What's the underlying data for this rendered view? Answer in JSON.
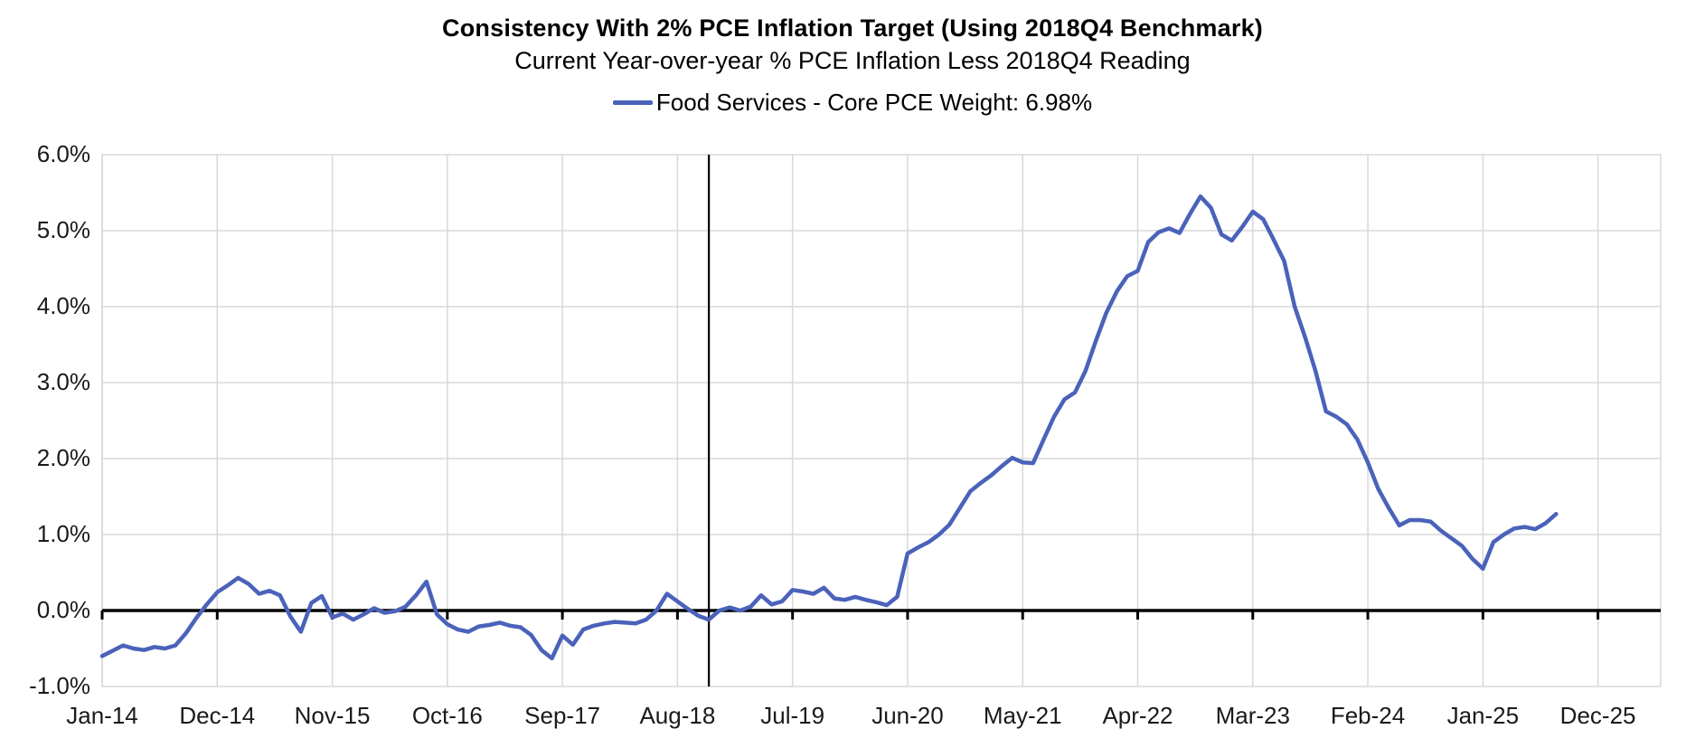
{
  "header": {
    "title": "Consistency With 2% PCE Inflation Target (Using 2018Q4 Benchmark)",
    "subtitle": "Current Year-over-year % PCE Inflation Less 2018Q4 Reading",
    "legend_label": "Food Services - Core PCE Weight: 6.98%"
  },
  "colors": {
    "series": "#4A62BA",
    "gridline": "#D8D8D8",
    "axis": "#000000",
    "text": "#1A1A1A"
  },
  "chart_data": {
    "type": "line",
    "title": "Consistency With 2% PCE Inflation Target (Using 2018Q4 Benchmark)",
    "subtitle": "Current Year-over-year % PCE Inflation Less 2018Q4 Reading",
    "legend_position": "top",
    "grid": true,
    "ylim": [
      -1.0,
      6.0
    ],
    "y_tick_labels": [
      "6.0%",
      "5.0%",
      "4.0%",
      "3.0%",
      "2.0%",
      "1.0%",
      "0.0%",
      "-1.0%"
    ],
    "y_tick_values": [
      6,
      5,
      4,
      3,
      2,
      1,
      0,
      -1
    ],
    "x_tick_labels": [
      "Jan-14",
      "Dec-14",
      "Nov-15",
      "Oct-16",
      "Sep-17",
      "Aug-18",
      "Jul-19",
      "Jun-20",
      "May-21",
      "Apr-22",
      "Mar-23",
      "Feb-24",
      "Jan-25",
      "Dec-25"
    ],
    "x_tick_month_interval": 11,
    "reference_lines": {
      "horizontal_at": 0.0,
      "vertical_at_month": "Nov-18"
    },
    "series": [
      {
        "name": "Food Services - Core PCE Weight: 6.98%",
        "color": "#4A62BA",
        "x_start": "Jan-14",
        "x_end": "Aug-25",
        "x_frequency": "monthly",
        "months": [
          "Jan-14",
          "Feb-14",
          "Mar-14",
          "Apr-14",
          "May-14",
          "Jun-14",
          "Jul-14",
          "Aug-14",
          "Sep-14",
          "Oct-14",
          "Nov-14",
          "Dec-14",
          "Jan-15",
          "Feb-15",
          "Mar-15",
          "Apr-15",
          "May-15",
          "Jun-15",
          "Jul-15",
          "Aug-15",
          "Sep-15",
          "Oct-15",
          "Nov-15",
          "Dec-15",
          "Jan-16",
          "Feb-16",
          "Mar-16",
          "Apr-16",
          "May-16",
          "Jun-16",
          "Jul-16",
          "Aug-16",
          "Sep-16",
          "Oct-16",
          "Nov-16",
          "Dec-16",
          "Jan-17",
          "Feb-17",
          "Mar-17",
          "Apr-17",
          "May-17",
          "Jun-17",
          "Jul-17",
          "Aug-17",
          "Sep-17",
          "Oct-17",
          "Nov-17",
          "Dec-17",
          "Jan-18",
          "Feb-18",
          "Mar-18",
          "Apr-18",
          "May-18",
          "Jun-18",
          "Jul-18",
          "Aug-18",
          "Sep-18",
          "Oct-18",
          "Nov-18",
          "Dec-18",
          "Jan-19",
          "Feb-19",
          "Mar-19",
          "Apr-19",
          "May-19",
          "Jun-19",
          "Jul-19",
          "Aug-19",
          "Sep-19",
          "Oct-19",
          "Nov-19",
          "Dec-19",
          "Jan-20",
          "Feb-20",
          "Mar-20",
          "Apr-20",
          "May-20",
          "Jun-20",
          "Jul-20",
          "Aug-20",
          "Sep-20",
          "Oct-20",
          "Nov-20",
          "Dec-20",
          "Jan-21",
          "Feb-21",
          "Mar-21",
          "Apr-21",
          "May-21",
          "Jun-21",
          "Jul-21",
          "Aug-21",
          "Sep-21",
          "Oct-21",
          "Nov-21",
          "Dec-21",
          "Jan-22",
          "Feb-22",
          "Mar-22",
          "Apr-22",
          "May-22",
          "Jun-22",
          "Jul-22",
          "Aug-22",
          "Sep-22",
          "Oct-22",
          "Nov-22",
          "Dec-22",
          "Jan-23",
          "Feb-23",
          "Mar-23",
          "Apr-23",
          "May-23",
          "Jun-23",
          "Jul-23",
          "Aug-23",
          "Sep-23",
          "Oct-23",
          "Nov-23",
          "Dec-23",
          "Jan-24",
          "Feb-24",
          "Mar-24",
          "Apr-24",
          "May-24",
          "Jun-24",
          "Jul-24",
          "Aug-24",
          "Sep-24",
          "Oct-24",
          "Nov-24",
          "Dec-24",
          "Jan-25",
          "Feb-25",
          "Mar-25",
          "Apr-25",
          "May-25",
          "Jun-25",
          "Jul-25",
          "Aug-25"
        ],
        "values": [
          -0.6,
          -0.53,
          -0.46,
          -0.5,
          -0.52,
          -0.48,
          -0.5,
          -0.46,
          -0.3,
          -0.1,
          0.08,
          0.24,
          0.33,
          0.43,
          0.35,
          0.22,
          0.26,
          0.2,
          -0.08,
          -0.28,
          0.1,
          0.19,
          -0.09,
          -0.04,
          -0.12,
          -0.05,
          0.03,
          -0.03,
          -0.01,
          0.05,
          0.2,
          0.38,
          -0.05,
          -0.18,
          -0.25,
          -0.28,
          -0.21,
          -0.19,
          -0.16,
          -0.2,
          -0.22,
          -0.32,
          -0.52,
          -0.63,
          -0.33,
          -0.45,
          -0.25,
          -0.2,
          -0.17,
          -0.15,
          -0.16,
          -0.17,
          -0.12,
          0.0,
          0.22,
          0.12,
          0.02,
          -0.07,
          -0.12,
          0.0,
          0.04,
          0.0,
          0.05,
          0.2,
          0.08,
          0.12,
          0.27,
          0.25,
          0.22,
          0.3,
          0.16,
          0.14,
          0.18,
          0.14,
          0.11,
          0.07,
          0.18,
          0.75,
          0.83,
          0.9,
          1.0,
          1.13,
          1.35,
          1.57,
          1.68,
          1.78,
          1.9,
          2.01,
          1.95,
          1.94,
          2.25,
          2.55,
          2.78,
          2.87,
          3.15,
          3.55,
          3.92,
          4.2,
          4.4,
          4.47,
          4.85,
          4.98,
          5.03,
          4.97,
          5.22,
          5.45,
          5.3,
          4.95,
          4.87,
          5.05,
          5.25,
          5.15,
          4.88,
          4.6,
          4.0,
          3.6,
          3.15,
          2.62,
          2.55,
          2.45,
          2.25,
          1.95,
          1.6,
          1.35,
          1.12,
          1.19,
          1.19,
          1.17,
          1.05,
          0.95,
          0.85,
          0.68,
          0.55,
          0.9,
          1.0,
          1.08,
          1.1,
          1.07,
          1.15,
          1.27
        ]
      }
    ]
  }
}
